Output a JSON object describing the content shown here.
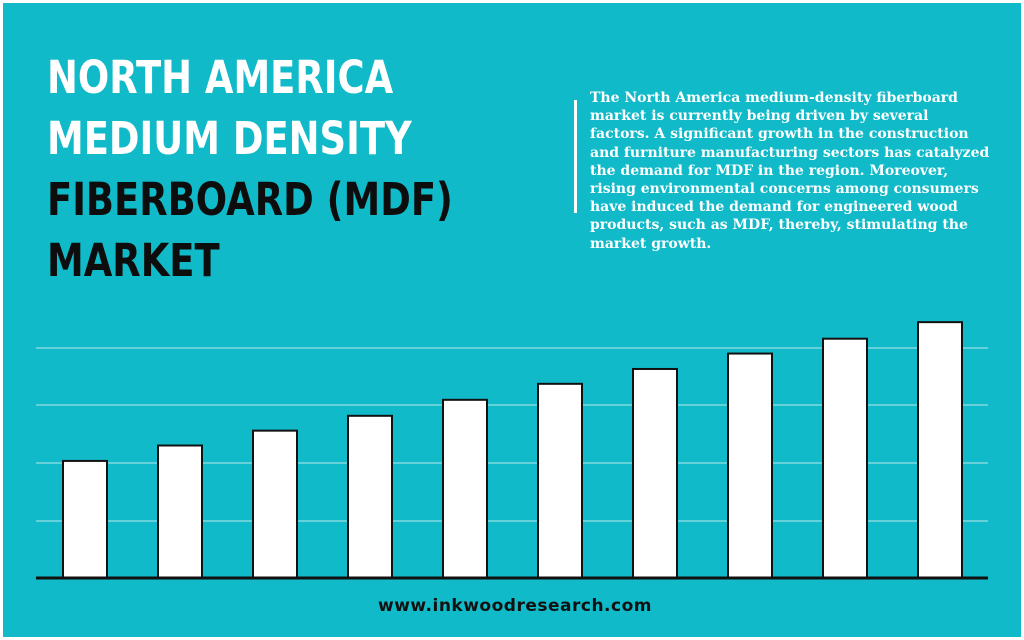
{
  "title": {
    "lines": [
      {
        "text": "NORTH AMERICA",
        "color": "#ffffff"
      },
      {
        "text": "MEDIUM DENSITY",
        "color": "#ffffff"
      },
      {
        "text": "FIBERBOARD (MDF)",
        "color": "#0d0d0d"
      },
      {
        "text": "MARKET",
        "color": "#0d0d0d"
      }
    ]
  },
  "description": "The North America medium-density fiberboard market is currently being driven by several factors. A significant growth in the construction and furniture manufacturing sectors has catalyzed the demand for MDF in the region. Moreover, rising environmental concerns among consumers have induced the demand for engineered wood products, such as MDF, thereby, stimulating the market growth.",
  "footer": {
    "url": "www.inkwoodresearch.com"
  },
  "colors": {
    "background": "#11bac8",
    "bar_fill": "#ffffff",
    "bar_stroke": "#111111",
    "gridline": "#b9e9ee"
  },
  "chart_data": {
    "type": "bar",
    "categories": [
      "",
      "",
      "",
      "",
      "",
      "",
      "",
      "",
      "",
      ""
    ],
    "values": [
      2.05,
      2.32,
      2.58,
      2.84,
      3.12,
      3.4,
      3.66,
      3.93,
      4.19,
      4.48
    ],
    "ylim": [
      0,
      4.5
    ],
    "grid": true,
    "title": "",
    "xlabel": "",
    "ylabel": ""
  }
}
